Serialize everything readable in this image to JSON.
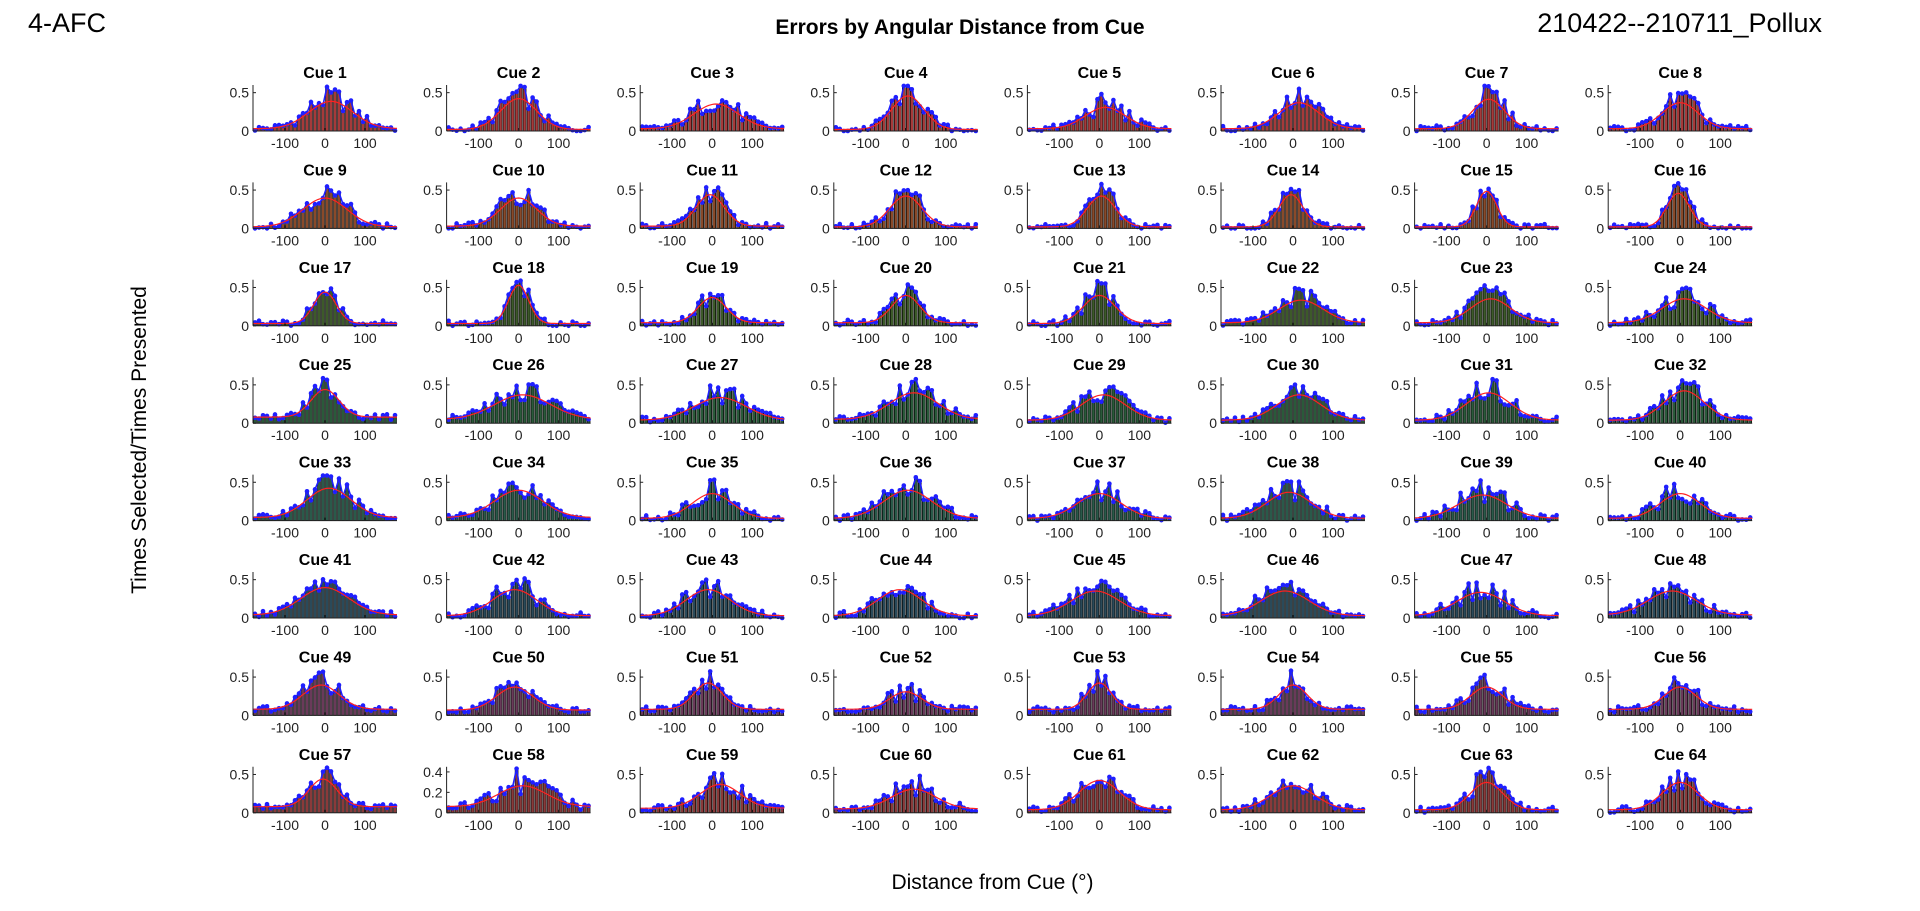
{
  "header": {
    "left": "4-AFC",
    "title": "Errors by Angular Distance from Cue",
    "right": "210422--210711_Pollux"
  },
  "axes": {
    "xlabel": "Distance from Cue (°)",
    "ylabel": "Times Selected/Times Presented"
  },
  "colors": {
    "bar_edge": "#000000",
    "data_points": "#1f1fff",
    "fit_curve": "#ff2020",
    "bar_rows": [
      "#a63a3a",
      "#8a4a2a",
      "#3d5a2a",
      "#2a5a3a",
      "#2a5a4a",
      "#2a4a5a",
      "#6a3a5a",
      "#8a3a3a"
    ]
  },
  "chart_data": {
    "type": "bar",
    "layout": "8x8 small multiples",
    "x_range": [
      -180,
      180
    ],
    "x_ticks": [
      -100,
      0,
      100
    ],
    "ylim_default": [
      0,
      0.6
    ],
    "y_ticks_default": [
      0,
      0.5
    ],
    "panels": [
      {
        "title": "Cue 1",
        "peak": 0.44,
        "center": 15,
        "width": 55,
        "baseline": 0.03
      },
      {
        "title": "Cue 2",
        "peak": 0.48,
        "center": 0,
        "width": 45,
        "baseline": 0.02
      },
      {
        "title": "Cue 3",
        "peak": 0.4,
        "center": 10,
        "width": 55,
        "baseline": 0.03
      },
      {
        "title": "Cue 4",
        "peak": 0.52,
        "center": 5,
        "width": 40,
        "baseline": 0.02
      },
      {
        "title": "Cue 5",
        "peak": 0.35,
        "center": 15,
        "width": 50,
        "baseline": 0.03
      },
      {
        "title": "Cue 6",
        "peak": 0.42,
        "center": 15,
        "width": 50,
        "baseline": 0.03
      },
      {
        "title": "Cue 7",
        "peak": 0.47,
        "center": 5,
        "width": 40,
        "baseline": 0.03
      },
      {
        "title": "Cue 8",
        "peak": 0.42,
        "center": 0,
        "width": 45,
        "baseline": 0.03
      },
      {
        "title": "Cue 9",
        "peak": 0.45,
        "center": 0,
        "width": 55,
        "baseline": 0.02
      },
      {
        "title": "Cue 10",
        "peak": 0.45,
        "center": 0,
        "width": 45,
        "baseline": 0.03
      },
      {
        "title": "Cue 11",
        "peak": 0.5,
        "center": -5,
        "width": 35,
        "baseline": 0.03
      },
      {
        "title": "Cue 12",
        "peak": 0.48,
        "center": 0,
        "width": 40,
        "baseline": 0.02
      },
      {
        "title": "Cue 13",
        "peak": 0.48,
        "center": 5,
        "width": 35,
        "baseline": 0.02
      },
      {
        "title": "Cue 14",
        "peak": 0.5,
        "center": -5,
        "width": 30,
        "baseline": 0.02
      },
      {
        "title": "Cue 15",
        "peak": 0.55,
        "center": 0,
        "width": 25,
        "baseline": 0.02
      },
      {
        "title": "Cue 16",
        "peak": 0.52,
        "center": -5,
        "width": 28,
        "baseline": 0.02
      },
      {
        "title": "Cue 17",
        "peak": 0.5,
        "center": 0,
        "width": 28,
        "baseline": 0.03
      },
      {
        "title": "Cue 18",
        "peak": 0.6,
        "center": 0,
        "width": 25,
        "baseline": 0.03
      },
      {
        "title": "Cue 19",
        "peak": 0.42,
        "center": 0,
        "width": 35,
        "baseline": 0.04
      },
      {
        "title": "Cue 20",
        "peak": 0.45,
        "center": 0,
        "width": 35,
        "baseline": 0.04
      },
      {
        "title": "Cue 21",
        "peak": 0.45,
        "center": 0,
        "width": 40,
        "baseline": 0.03
      },
      {
        "title": "Cue 22",
        "peak": 0.38,
        "center": 20,
        "width": 55,
        "baseline": 0.04
      },
      {
        "title": "Cue 23",
        "peak": 0.4,
        "center": 10,
        "width": 50,
        "baseline": 0.04
      },
      {
        "title": "Cue 24",
        "peak": 0.4,
        "center": 10,
        "width": 55,
        "baseline": 0.04
      },
      {
        "title": "Cue 25",
        "peak": 0.5,
        "center": 0,
        "width": 35,
        "baseline": 0.08
      },
      {
        "title": "Cue 26",
        "peak": 0.42,
        "center": 10,
        "width": 70,
        "baseline": 0.05
      },
      {
        "title": "Cue 27",
        "peak": 0.38,
        "center": 20,
        "width": 65,
        "baseline": 0.04
      },
      {
        "title": "Cue 28",
        "peak": 0.45,
        "center": 20,
        "width": 60,
        "baseline": 0.05
      },
      {
        "title": "Cue 29",
        "peak": 0.42,
        "center": 10,
        "width": 55,
        "baseline": 0.04
      },
      {
        "title": "Cue 30",
        "peak": 0.42,
        "center": 15,
        "width": 55,
        "baseline": 0.04
      },
      {
        "title": "Cue 31",
        "peak": 0.45,
        "center": 5,
        "width": 55,
        "baseline": 0.04
      },
      {
        "title": "Cue 32",
        "peak": 0.48,
        "center": 10,
        "width": 50,
        "baseline": 0.04
      },
      {
        "title": "Cue 33",
        "peak": 0.48,
        "center": 10,
        "width": 55,
        "baseline": 0.04
      },
      {
        "title": "Cue 34",
        "peak": 0.45,
        "center": 0,
        "width": 60,
        "baseline": 0.04
      },
      {
        "title": "Cue 35",
        "peak": 0.4,
        "center": 0,
        "width": 50,
        "baseline": 0.03
      },
      {
        "title": "Cue 36",
        "peak": 0.45,
        "center": 5,
        "width": 60,
        "baseline": 0.03
      },
      {
        "title": "Cue 37",
        "peak": 0.4,
        "center": 0,
        "width": 55,
        "baseline": 0.03
      },
      {
        "title": "Cue 38",
        "peak": 0.42,
        "center": -10,
        "width": 55,
        "baseline": 0.03
      },
      {
        "title": "Cue 39",
        "peak": 0.38,
        "center": -10,
        "width": 60,
        "baseline": 0.03
      },
      {
        "title": "Cue 40",
        "peak": 0.4,
        "center": 0,
        "width": 50,
        "baseline": 0.03
      },
      {
        "title": "Cue 41",
        "peak": 0.45,
        "center": 0,
        "width": 60,
        "baseline": 0.04
      },
      {
        "title": "Cue 42",
        "peak": 0.42,
        "center": -10,
        "width": 55,
        "baseline": 0.03
      },
      {
        "title": "Cue 43",
        "peak": 0.42,
        "center": -10,
        "width": 55,
        "baseline": 0.03
      },
      {
        "title": "Cue 44",
        "peak": 0.42,
        "center": -15,
        "width": 55,
        "baseline": 0.03
      },
      {
        "title": "Cue 45",
        "peak": 0.4,
        "center": -10,
        "width": 60,
        "baseline": 0.03
      },
      {
        "title": "Cue 46",
        "peak": 0.4,
        "center": -20,
        "width": 60,
        "baseline": 0.03
      },
      {
        "title": "Cue 47",
        "peak": 0.38,
        "center": -15,
        "width": 60,
        "baseline": 0.03
      },
      {
        "title": "Cue 48",
        "peak": 0.4,
        "center": -20,
        "width": 60,
        "baseline": 0.04
      },
      {
        "title": "Cue 49",
        "peak": 0.45,
        "center": -10,
        "width": 45,
        "baseline": 0.08
      },
      {
        "title": "Cue 50",
        "peak": 0.42,
        "center": -10,
        "width": 45,
        "baseline": 0.07
      },
      {
        "title": "Cue 51",
        "peak": 0.48,
        "center": -10,
        "width": 35,
        "baseline": 0.08
      },
      {
        "title": "Cue 52",
        "peak": 0.35,
        "center": 0,
        "width": 40,
        "baseline": 0.08
      },
      {
        "title": "Cue 53",
        "peak": 0.48,
        "center": 0,
        "width": 30,
        "baseline": 0.08
      },
      {
        "title": "Cue 54",
        "peak": 0.45,
        "center": 0,
        "width": 35,
        "baseline": 0.08
      },
      {
        "title": "Cue 55",
        "peak": 0.42,
        "center": 0,
        "width": 40,
        "baseline": 0.08
      },
      {
        "title": "Cue 56",
        "peak": 0.42,
        "center": 0,
        "width": 40,
        "baseline": 0.08
      },
      {
        "title": "Cue 57",
        "peak": 0.5,
        "center": -5,
        "width": 35,
        "baseline": 0.08
      },
      {
        "title": "Cue 58",
        "peak": 0.3,
        "center": 10,
        "width": 60,
        "baseline": 0.06,
        "ylim": [
          0,
          0.45
        ],
        "yticks": [
          0,
          0.2,
          0.4
        ]
      },
      {
        "title": "Cue 59",
        "peak": 0.42,
        "center": 20,
        "width": 50,
        "baseline": 0.06
      },
      {
        "title": "Cue 60",
        "peak": 0.35,
        "center": 20,
        "width": 55,
        "baseline": 0.05
      },
      {
        "title": "Cue 61",
        "peak": 0.48,
        "center": 0,
        "width": 50,
        "baseline": 0.04
      },
      {
        "title": "Cue 62",
        "peak": 0.4,
        "center": 0,
        "width": 55,
        "baseline": 0.04
      },
      {
        "title": "Cue 63",
        "peak": 0.45,
        "center": 0,
        "width": 40,
        "baseline": 0.04
      },
      {
        "title": "Cue 64",
        "peak": 0.45,
        "center": 0,
        "width": 45,
        "baseline": 0.04
      }
    ]
  }
}
